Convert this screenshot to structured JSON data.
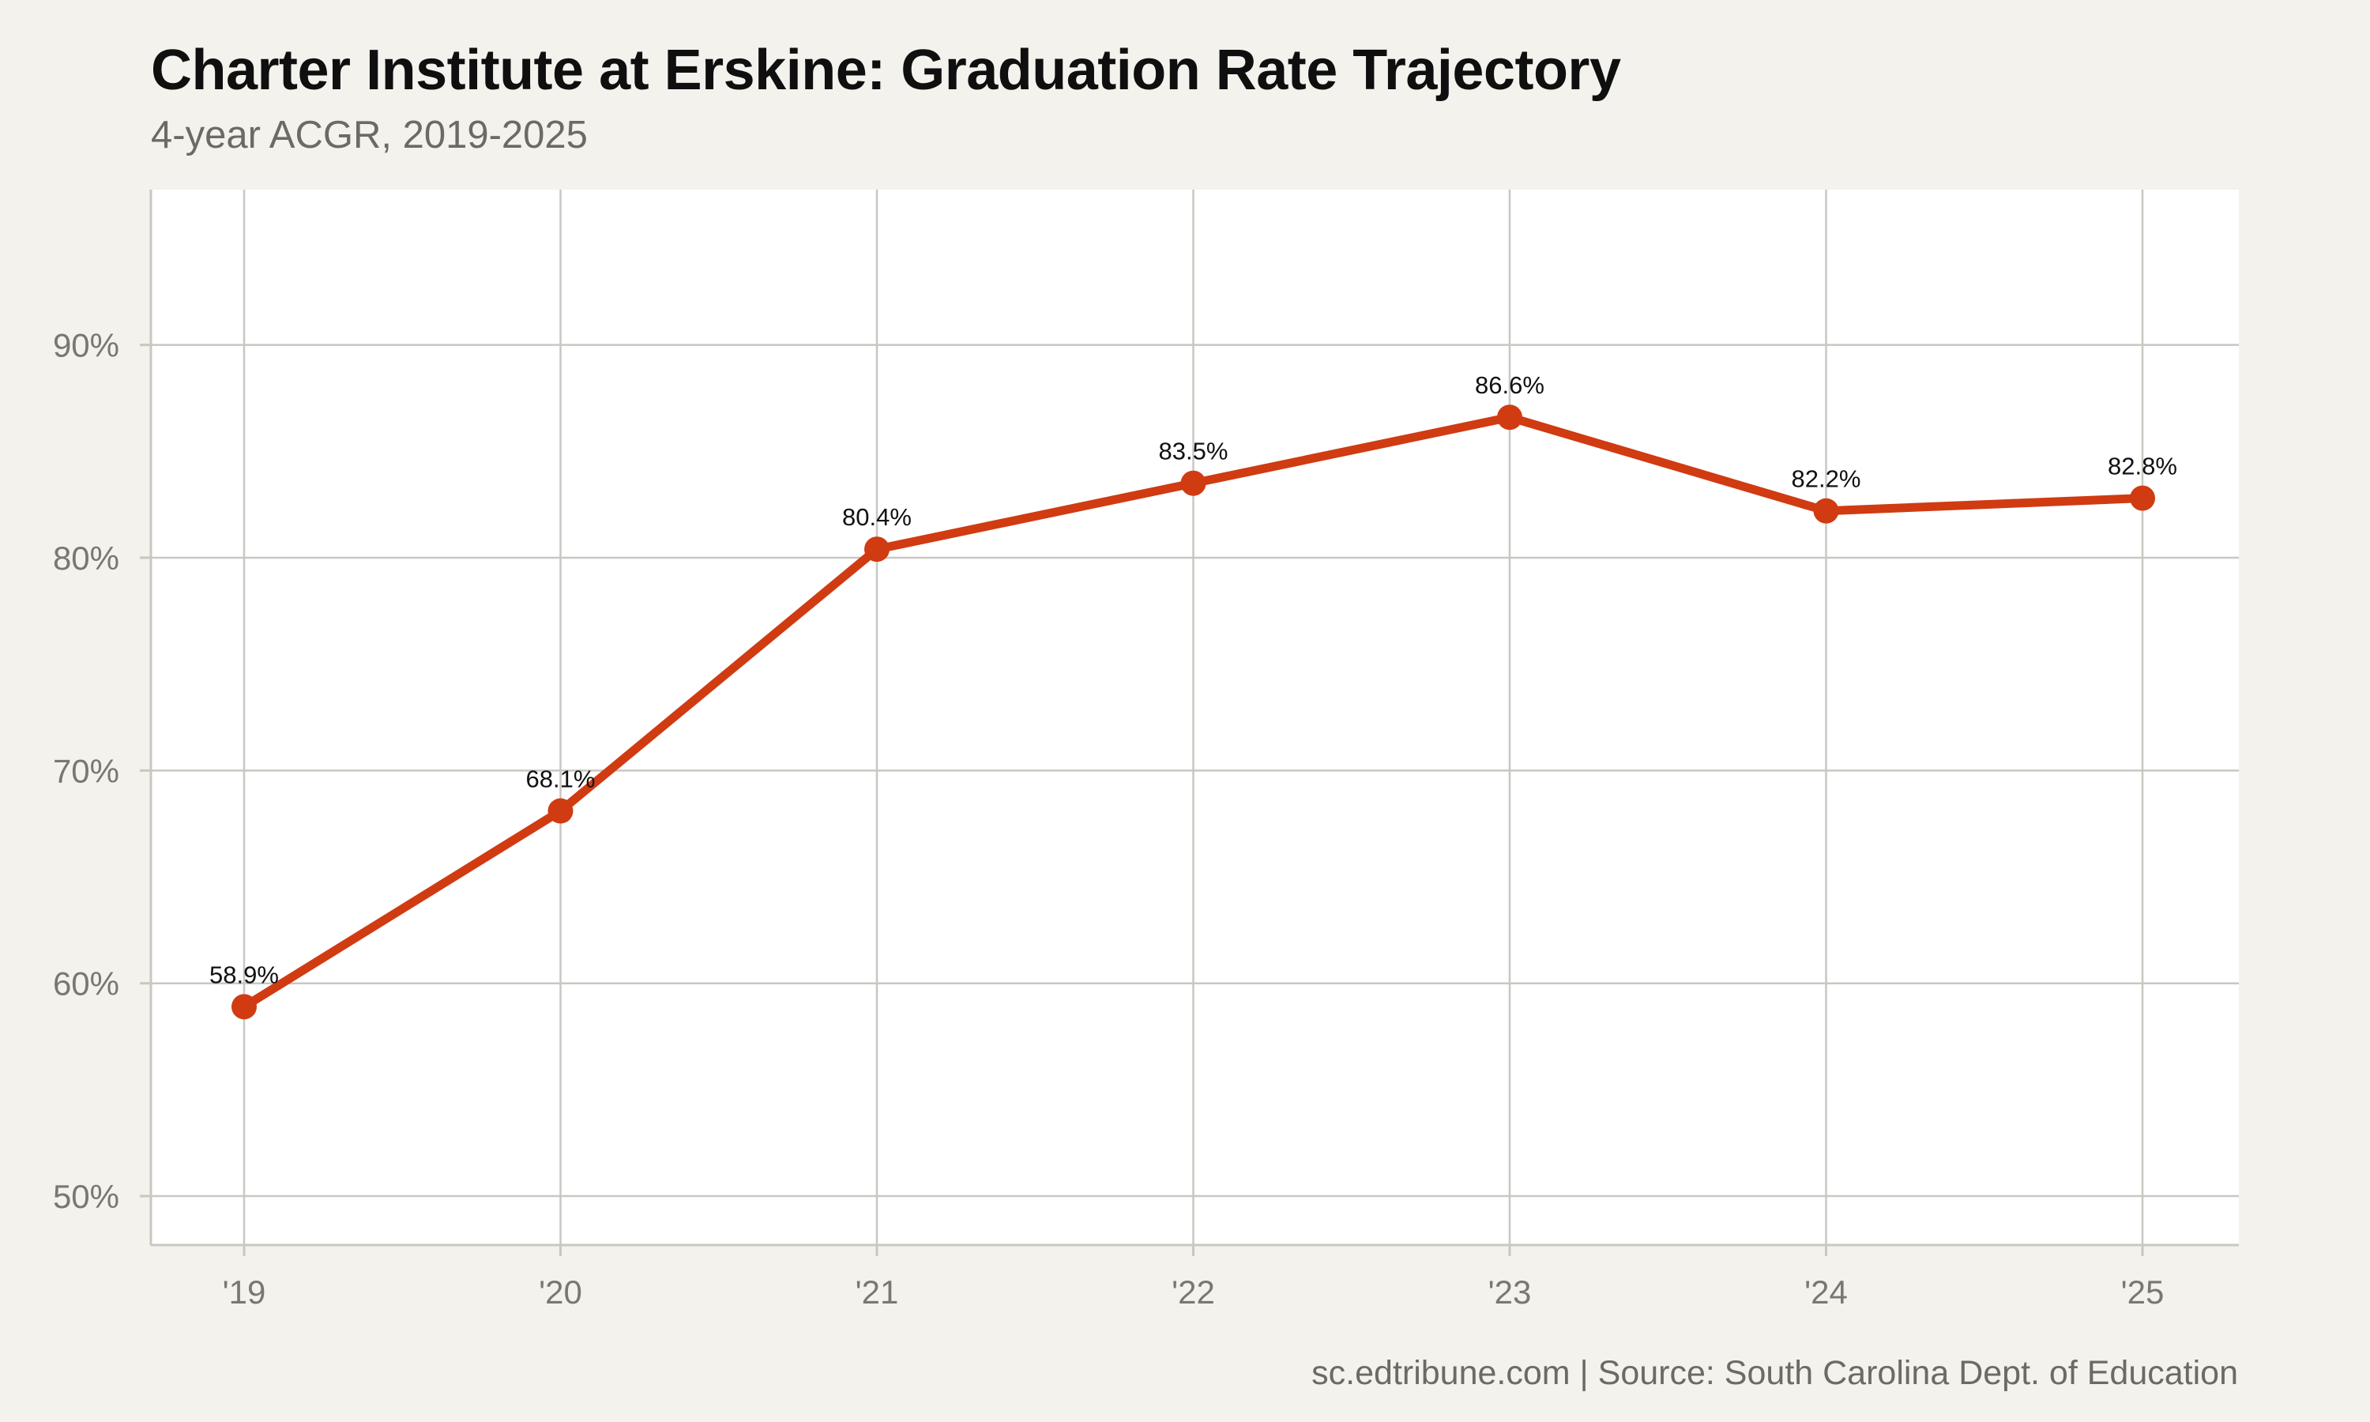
{
  "title": "Charter Institute at Erskine: Graduation Rate Trajectory",
  "subtitle": "4-year ACGR, 2019-2025",
  "caption": "sc.edtribune.com | Source: South Carolina Dept. of Education",
  "chart_data": {
    "type": "line",
    "title": "Charter Institute at Erskine: Graduation Rate Trajectory",
    "subtitle": "4-year ACGR, 2019-2025",
    "xlabel": "",
    "ylabel": "",
    "categories": [
      "'19",
      "'20",
      "'21",
      "'22",
      "'23",
      "'24",
      "'25"
    ],
    "series": [
      {
        "values": [
          58.9,
          68.1,
          80.4,
          83.5,
          86.6,
          82.2,
          82.8
        ],
        "labels": [
          "58.9%",
          "68.1%",
          "80.4%",
          "83.5%",
          "86.6%",
          "82.2%",
          "82.8%"
        ],
        "color": "#d03b12"
      }
    ],
    "yticks": [
      50,
      60,
      70,
      80,
      90
    ],
    "ytick_labels": [
      "50%",
      "60%",
      "70%",
      "80%",
      "90%"
    ],
    "ylim": [
      47.7,
      97.3
    ],
    "grid": true,
    "legend": "none",
    "colors": {
      "line": "#d03b12",
      "panel": "#ffffff",
      "background": "#f4f2ed",
      "grid": "#c9c7c1"
    }
  }
}
